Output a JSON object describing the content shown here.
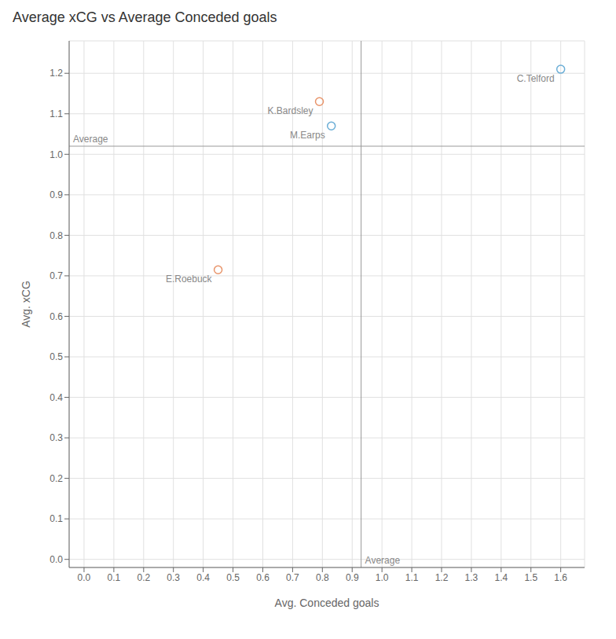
{
  "chart_data": {
    "type": "scatter",
    "title": "Average xCG vs Average Conceded goals",
    "x_label": "Avg. Conceded goals",
    "y_label": "Avg. xCG",
    "x": [
      1.6,
      0.79,
      0.83,
      0.45
    ],
    "values": [
      1.21,
      1.13,
      1.07,
      0.715
    ],
    "labels": [
      "C.Telford",
      "K.Bardsley",
      "M.Earps",
      "E.Roebuck"
    ],
    "colors": [
      "#6baed6",
      "#e8946a",
      "#6baed6",
      "#e8946a"
    ],
    "marker": "circle",
    "xlim": [
      -0.05,
      1.68
    ],
    "ylim": [
      -0.02,
      1.28
    ],
    "xticks": [
      {
        "value": 0,
        "label": "0.0"
      },
      0.1,
      0.2,
      0.3,
      0.4,
      0.5,
      0.6,
      0.7,
      0.8,
      0.9,
      {
        "value": 1,
        "label": "1.0"
      },
      1.1,
      1.2,
      1.3,
      1.4,
      1.5,
      1.6
    ],
    "yticks": [
      {
        "value": 0,
        "label": "0.0"
      },
      0.1,
      0.2,
      0.3,
      0.4,
      0.5,
      0.6,
      0.7,
      0.8,
      0.9,
      {
        "value": 1,
        "label": "1.0"
      },
      1.1,
      1.2
    ],
    "grid": true,
    "annotations": [
      {
        "type": "vline",
        "x": 0.93,
        "label": "Average"
      },
      {
        "type": "hline",
        "y": 1.02,
        "label": "Average"
      }
    ]
  }
}
